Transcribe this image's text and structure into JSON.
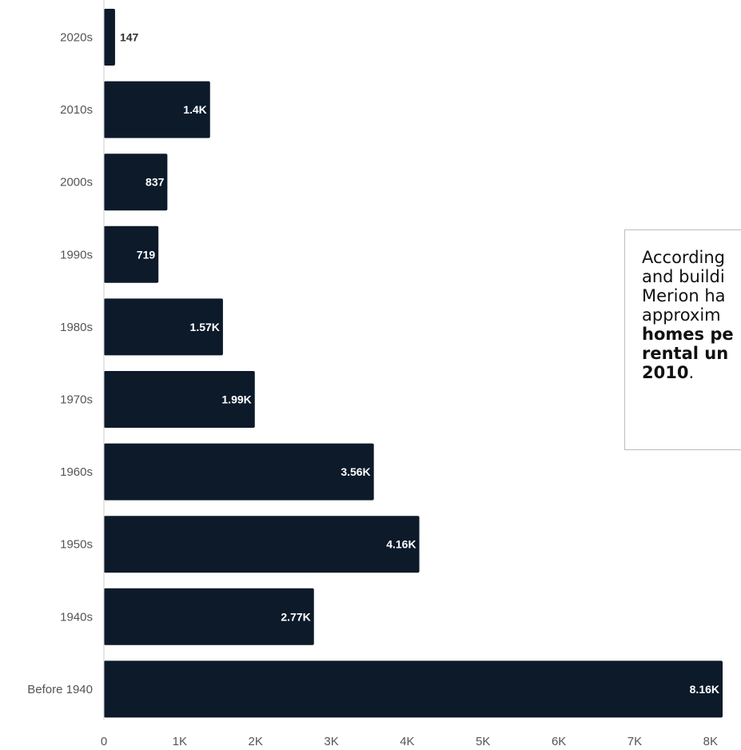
{
  "chart_data": {
    "type": "bar",
    "orientation": "horizontal",
    "categories": [
      "2020s",
      "2010s",
      "2000s",
      "1990s",
      "1980s",
      "1970s",
      "1960s",
      "1950s",
      "1940s",
      "Before 1940"
    ],
    "values": [
      147,
      1400,
      837,
      719,
      1570,
      1990,
      3560,
      4160,
      2770,
      8160
    ],
    "data_labels": [
      "147",
      "1.4K",
      "837",
      "719",
      "1.57K",
      "1.99K",
      "3.56K",
      "4.16K",
      "2.77K",
      "8.16K"
    ],
    "x_ticks": [
      0,
      1000,
      2000,
      3000,
      4000,
      5000,
      6000,
      7000,
      8000
    ],
    "x_tick_labels": [
      "0",
      "1K",
      "2K",
      "3K",
      "4K",
      "5K",
      "6K",
      "7K",
      "8K"
    ],
    "xlim": [
      0,
      8160
    ],
    "grid": false,
    "legend": "none",
    "colors": {
      "bar": "#0c1a2a",
      "label_inside": "#ffffff",
      "label_outside": "#333333"
    }
  },
  "annotation": {
    "lines": [
      [
        {
          "t": "According",
          "b": false
        }
      ],
      [
        {
          "t": "and buildi",
          "b": false
        }
      ],
      [
        {
          "t": "Merion ha",
          "b": false
        }
      ],
      [
        {
          "t": "approxim",
          "b": false
        }
      ],
      [
        {
          "t": "homes pe",
          "b": true
        }
      ],
      [
        {
          "t": "rental un",
          "b": true
        }
      ],
      [
        {
          "t": "2010",
          "b": true
        },
        {
          "t": ".",
          "b": false
        }
      ]
    ]
  }
}
